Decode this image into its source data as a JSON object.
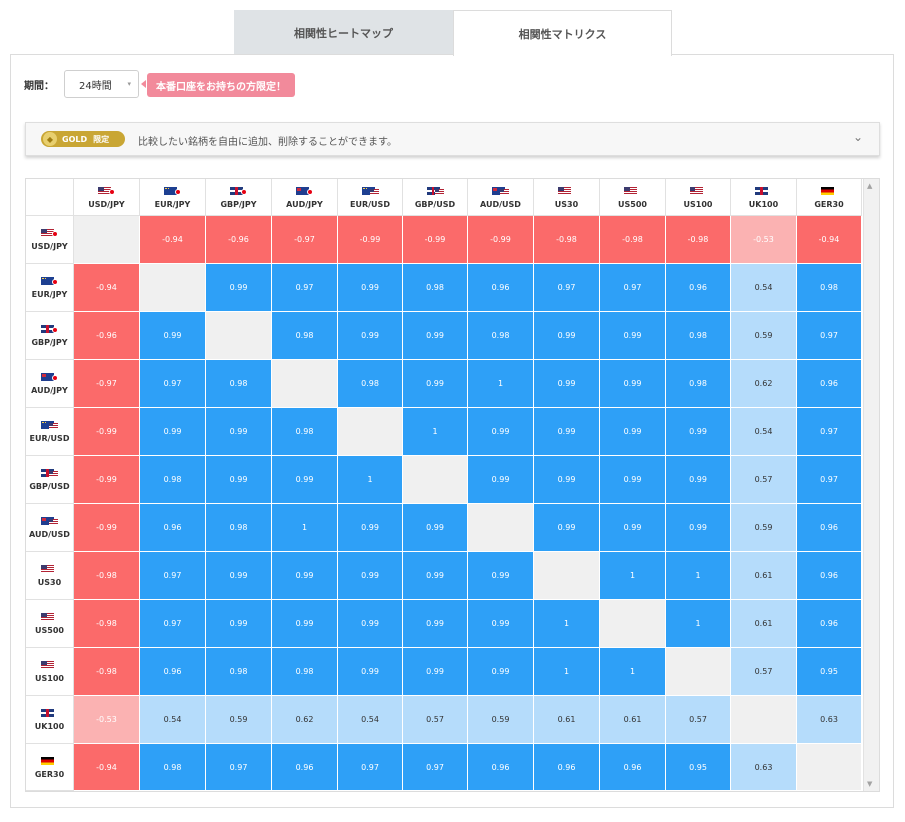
{
  "tabs": [
    {
      "label": "相関性ヒートマップ",
      "active": false
    },
    {
      "label": "相関性マトリクス",
      "active": true
    }
  ],
  "period": {
    "label": "期間：",
    "value": "24時間",
    "arrow": "▾"
  },
  "promo": {
    "label": "本番口座をお持ちの方限定！"
  },
  "gold": {
    "badge": "GOLD",
    "badge_limited": "限定",
    "coin_icon": "gold-coin-icon",
    "text": "比較したい銘柄を自由に追加、削除することができます。",
    "chevron": "⌄"
  },
  "colors": {
    "negative_strong": "#fb6a6a",
    "negative_weak": "#fbb2b2",
    "positive_strong": "#2ea0f7",
    "positive_weak": "#b5dcfb",
    "diagonal": "#f0f0f0"
  },
  "symbols": [
    {
      "label": "USD/JPY",
      "flag": "us",
      "jp": true
    },
    {
      "label": "EUR/JPY",
      "flag": "eu",
      "jp": true
    },
    {
      "label": "GBP/JPY",
      "flag": "uk",
      "jp": true
    },
    {
      "label": "AUD/JPY",
      "flag": "au",
      "jp": true
    },
    {
      "label": "EUR/USD",
      "flag": "eu",
      "sub": "us"
    },
    {
      "label": "GBP/USD",
      "flag": "uk",
      "sub": "us"
    },
    {
      "label": "AUD/USD",
      "flag": "au",
      "sub": "us"
    },
    {
      "label": "US30",
      "flag": "us"
    },
    {
      "label": "US500",
      "flag": "us"
    },
    {
      "label": "US100",
      "flag": "us"
    },
    {
      "label": "UK100",
      "flag": "uk"
    },
    {
      "label": "GER30",
      "flag": "de"
    }
  ],
  "matrix": [
    [
      "",
      "-0.94",
      "-0.96",
      "-0.97",
      "-0.99",
      "-0.99",
      "-0.99",
      "-0.98",
      "-0.98",
      "-0.98",
      "-0.53",
      "-0.94"
    ],
    [
      "-0.94",
      "",
      "0.99",
      "0.97",
      "0.99",
      "0.98",
      "0.96",
      "0.97",
      "0.97",
      "0.96",
      "0.54",
      "0.98"
    ],
    [
      "-0.96",
      "0.99",
      "",
      "0.98",
      "0.99",
      "0.99",
      "0.98",
      "0.99",
      "0.99",
      "0.98",
      "0.59",
      "0.97"
    ],
    [
      "-0.97",
      "0.97",
      "0.98",
      "",
      "0.98",
      "0.99",
      "1",
      "0.99",
      "0.99",
      "0.98",
      "0.62",
      "0.96"
    ],
    [
      "-0.99",
      "0.99",
      "0.99",
      "0.98",
      "",
      "1",
      "0.99",
      "0.99",
      "0.99",
      "0.99",
      "0.54",
      "0.97"
    ],
    [
      "-0.99",
      "0.98",
      "0.99",
      "0.99",
      "1",
      "",
      "0.99",
      "0.99",
      "0.99",
      "0.99",
      "0.57",
      "0.97"
    ],
    [
      "-0.99",
      "0.96",
      "0.98",
      "1",
      "0.99",
      "0.99",
      "",
      "0.99",
      "0.99",
      "0.99",
      "0.59",
      "0.96"
    ],
    [
      "-0.98",
      "0.97",
      "0.99",
      "0.99",
      "0.99",
      "0.99",
      "0.99",
      "",
      "1",
      "1",
      "0.61",
      "0.96"
    ],
    [
      "-0.98",
      "0.97",
      "0.99",
      "0.99",
      "0.99",
      "0.99",
      "0.99",
      "1",
      "",
      "1",
      "0.61",
      "0.96"
    ],
    [
      "-0.98",
      "0.96",
      "0.98",
      "0.98",
      "0.99",
      "0.99",
      "0.99",
      "1",
      "1",
      "",
      "0.57",
      "0.95"
    ],
    [
      "-0.53",
      "0.54",
      "0.59",
      "0.62",
      "0.54",
      "0.57",
      "0.59",
      "0.61",
      "0.61",
      "0.57",
      "",
      "0.63"
    ],
    [
      "-0.94",
      "0.98",
      "0.97",
      "0.96",
      "0.97",
      "0.97",
      "0.96",
      "0.96",
      "0.96",
      "0.95",
      "0.63",
      ""
    ]
  ],
  "scrollbar": {
    "up": "▲",
    "down": "▼"
  }
}
